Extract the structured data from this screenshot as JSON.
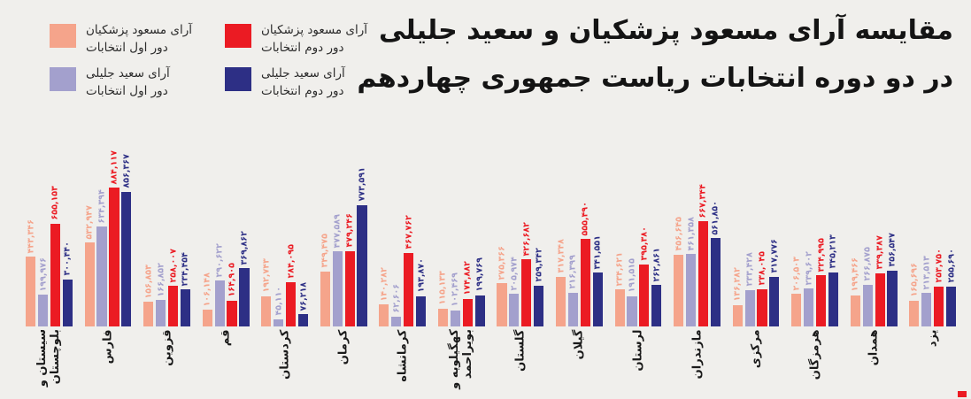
{
  "title": {
    "line1": "مقایسه آرای مسعود پزشکیان و سعید جلیلی",
    "line2": "در دو دوره انتخابات ریاست جمهوری چهاردهم"
  },
  "colors": {
    "background": "#F0EFEC",
    "pezeshkian_round1": "#F5A48B",
    "jalili_round1": "#A3A0CD",
    "pezeshkian_round2": "#EB1B23",
    "jalili_round2": "#2D2F85",
    "title_text": "#141414",
    "brand_mark": "#EB1B23"
  },
  "chart_data": {
    "type": "bar",
    "orientation": "vertical",
    "legend_position": "top-left",
    "value_labels_shown": true,
    "value_label_rotation": -90,
    "category_label_rotation": -90,
    "grid": false,
    "ylim": [
      0,
      884117
    ],
    "categories": [
      "سیستان و\nبلوچستان",
      "فارس",
      "قزوین",
      "قم",
      "کردستان",
      "کرمان",
      "کرمانشاه",
      "کهگیلویه و\nبویراحمد",
      "گلستان",
      "گیلان",
      "لرستان",
      "مازندران",
      "مرکزی",
      "هرمزگان",
      "همدان",
      "یزد"
    ],
    "series": [
      {
        "key": "pezeshkian-round1",
        "label_line1": "آرای مسعود پزشکیان",
        "label_line2": "دور اول انتخابات",
        "color": "#F5A48B",
        "values": [
          "۴۴۳,۳۴۶",
          "۵۳۲,۹۴۷",
          "۱۵۶,۸۵۳",
          "۱۰۶,۱۴۸",
          "۱۹۲,۷۴۳",
          "۳۴۹,۴۷۵",
          "۱۴۰,۲۸۲",
          "۱۱۵,۱۳۳",
          "۲۷۵,۳۶۶",
          "۳۱۷,۳۴۸",
          "۲۳۴,۶۲۱",
          "۴۵۶,۶۴۵",
          "۱۳۶,۲۸۲",
          "۲۰۶,۵۰۳",
          "۱۹۹,۴۶۶",
          "۱۶۵,۶۹۶"
        ],
        "values_numeric": [
          443346,
          532947,
          156853,
          106148,
          192743,
          349475,
          140282,
          115133,
          275366,
          317348,
          234621,
          456645,
          136282,
          206503,
          199466,
          165696
        ]
      },
      {
        "key": "jalili-round1",
        "label_line1": "آرای سعید جلیلی",
        "label_line2": "دور اول انتخابات",
        "color": "#A3A0CD",
        "values": [
          "۱۹۹,۹۷۶",
          "۶۳۴,۳۹۴",
          "۱۶۶,۸۵۲",
          "۲۹۰,۶۲۲",
          "۴۵,۱۱۰",
          "۴۷۷,۵۸۹",
          "۶۲,۶۰۶",
          "۱۰۲,۴۶۹",
          "۲۰۵,۹۷۴",
          "۲۱۶,۳۹۹",
          "۱۹۱,۵۱۵",
          "۴۶۱,۳۵۸",
          "۲۳۳,۴۲۸",
          "۲۳۹,۶۰۲",
          "۲۶۶,۸۷۵",
          "۲۱۳,۵۱۳"
        ],
        "values_numeric": [
          199976,
          634394,
          166852,
          290622,
          45110,
          477589,
          62606,
          102469,
          205974,
          216399,
          191515,
          461358,
          233428,
          239602,
          266875,
          213513
        ]
      },
      {
        "key": "pezeshkian-round2",
        "label_line1": "آرای مسعود پزشکیان",
        "label_line2": "دور دوم انتخابات",
        "color": "#EB1B23",
        "values": [
          "۶۵۵,۱۵۳",
          "۸۸۴,۱۱۷",
          "۲۵۸,۰۰۷",
          "۱۶۴,۹۰۵",
          "۲۸۴,۰۹۵",
          "۴۷۹,۲۴۶",
          "۴۶۷,۷۶۲",
          "۱۷۴,۸۸۲",
          "۴۲۶,۶۸۲",
          "۵۵۵,۴۹۰",
          "۳۹۵,۳۸۰",
          "۶۶۷,۳۴۴",
          "۲۳۸,۰۴۵",
          "۳۲۴,۹۹۵",
          "۳۳۹,۳۸۷",
          "۲۵۳,۷۵۰"
        ],
        "values_numeric": [
          655153,
          884117,
          258007,
          164905,
          284095,
          479246,
          467762,
          174882,
          426682,
          555490,
          395380,
          667344,
          238045,
          324995,
          339387,
          253750
        ]
      },
      {
        "key": "jalili-round2",
        "label_line1": "آرای سعید جلیلی",
        "label_line2": "دور دوم انتخابات",
        "color": "#2D2F85",
        "values": [
          "۳۰۰,۴۴۰",
          "۸۵۶,۳۶۷",
          "۲۳۴,۴۵۴",
          "۳۶۹,۸۶۲",
          "۷۶,۲۱۸",
          "۷۷۳,۵۹۱",
          "۱۹۳,۸۷۰",
          "۱۹۹,۷۶۹",
          "۲۵۹,۳۴۲",
          "۳۴۱,۵۵۱",
          "۲۶۲,۸۶۱",
          "۵۶۱,۸۵۰",
          "۳۱۷,۷۷۶",
          "۳۴۵,۲۱۳",
          "۳۵۶,۵۴۷",
          "۲۵۵,۶۹۰"
        ],
        "values_numeric": [
          300440,
          856367,
          234454,
          369862,
          76218,
          773591,
          193870,
          199769,
          259342,
          341551,
          262861,
          561850,
          317776,
          345213,
          356547,
          255690
        ]
      }
    ]
  }
}
